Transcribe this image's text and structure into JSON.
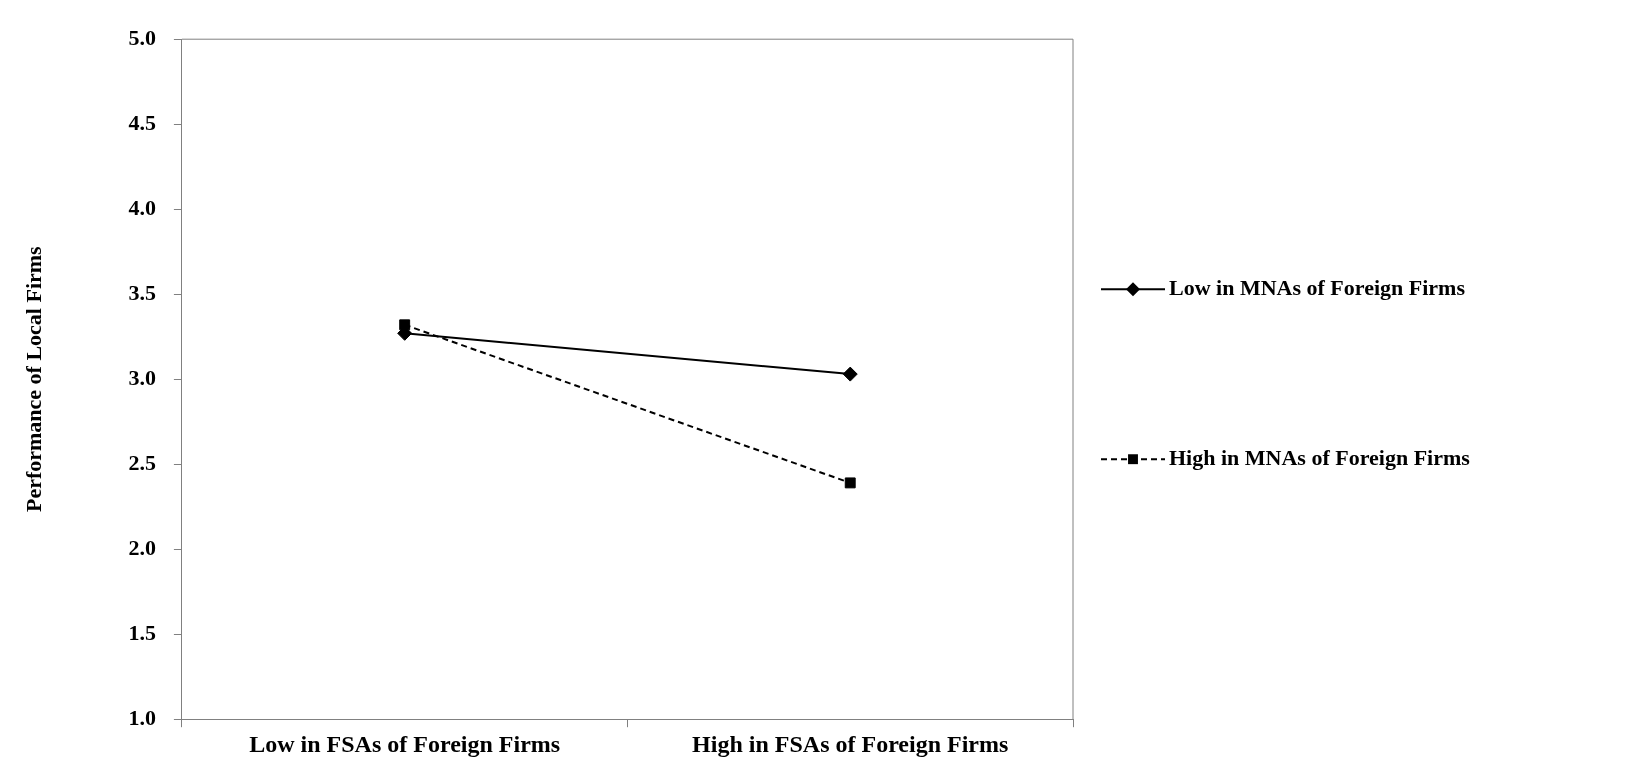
{
  "chart_data": {
    "type": "line",
    "ylabel": "Performance of Local Firms",
    "categories": [
      "Low in FSAs of Foreign Firms",
      "High in FSAs of Foreign Firms"
    ],
    "series": [
      {
        "name": "Low in MNAs of Foreign Firms",
        "color": "#000000",
        "values": [
          3.27,
          3.03
        ],
        "marker": "diamond",
        "line_style": "solid"
      },
      {
        "name": "High in MNAs of Foreign Firms",
        "color": "#000000",
        "values": [
          3.32,
          2.39
        ],
        "marker": "square",
        "line_style": "dashed"
      }
    ],
    "ylim": [
      1,
      5
    ],
    "yticks": [
      {
        "value": 1,
        "label": "1.0"
      },
      {
        "value": 1.5,
        "label": "1.5"
      },
      {
        "value": 2,
        "label": "2.0"
      },
      {
        "value": 2.5,
        "label": "2.5"
      },
      {
        "value": 3,
        "label": "3.0"
      },
      {
        "value": 3.5,
        "label": "3.5"
      },
      {
        "value": 4,
        "label": "4.0"
      },
      {
        "value": 4.5,
        "label": "4.5"
      },
      {
        "value": 5,
        "label": "5.0"
      }
    ],
    "grid": false,
    "legend": "right"
  }
}
